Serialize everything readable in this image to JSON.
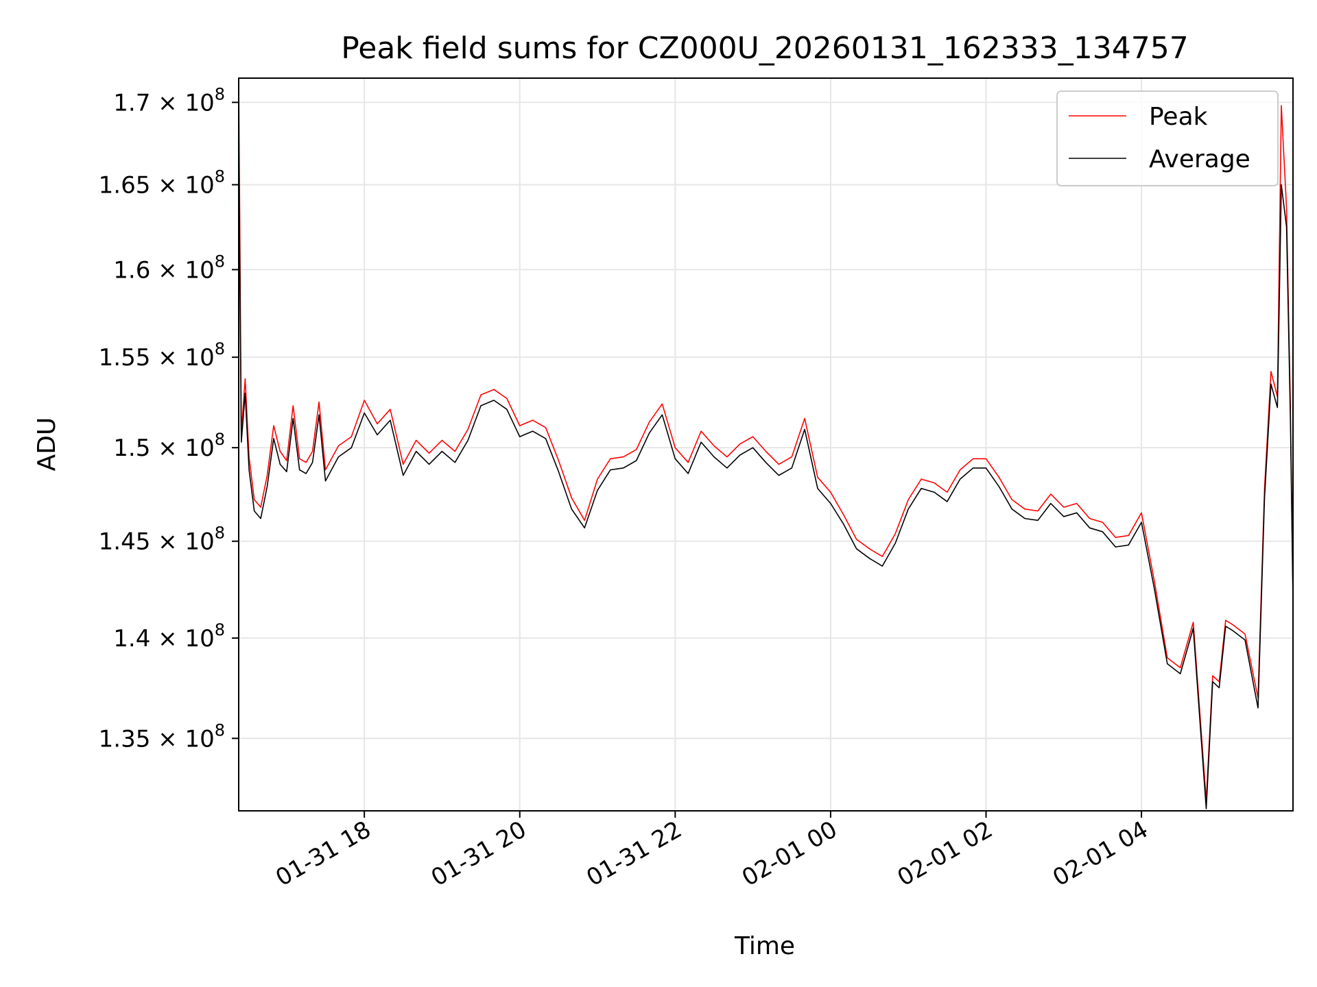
{
  "chart_data": {
    "type": "line",
    "title": "Peak field sums for CZ000U_20260131_162333_134757",
    "xlabel": "Time",
    "ylabel": "ADU",
    "x_range": [
      "2026-01-31 16:23",
      "2026-02-01 05:57"
    ],
    "ylim": [
      131500000,
      171500000
    ],
    "y_scale": "log",
    "grid": true,
    "legend_placement": "top-right",
    "x_ticks": [
      "01-31 18",
      "01-31 20",
      "01-31 22",
      "02-01 00",
      "02-01 02",
      "02-01 04"
    ],
    "y_ticks": [
      {
        "value": 135000000,
        "mantissa": "1.35",
        "base": "10",
        "exp": "8"
      },
      {
        "value": 140000000,
        "mantissa": "1.4",
        "base": "10",
        "exp": "8"
      },
      {
        "value": 145000000,
        "mantissa": "1.45",
        "base": "10",
        "exp": "8"
      },
      {
        "value": 150000000,
        "mantissa": "1.5",
        "base": "10",
        "exp": "8"
      },
      {
        "value": 155000000,
        "mantissa": "1.55",
        "base": "10",
        "exp": "8"
      },
      {
        "value": 160000000,
        "mantissa": "1.6",
        "base": "10",
        "exp": "8"
      },
      {
        "value": 165000000,
        "mantissa": "1.65",
        "base": "10",
        "exp": "8"
      },
      {
        "value": 170000000,
        "mantissa": "1.7",
        "base": "10",
        "exp": "8"
      }
    ],
    "series": [
      {
        "name": "Peak",
        "color": "#ff0000",
        "x": [
          "2026-01-31 16:23",
          "2026-01-31 16:25",
          "2026-01-31 16:28",
          "2026-01-31 16:31",
          "2026-01-31 16:35",
          "2026-01-31 16:40",
          "2026-01-31 16:45",
          "2026-01-31 16:50",
          "2026-01-31 16:55",
          "2026-01-31 17:00",
          "2026-01-31 17:05",
          "2026-01-31 17:10",
          "2026-01-31 17:15",
          "2026-01-31 17:20",
          "2026-01-31 17:25",
          "2026-01-31 17:30",
          "2026-01-31 17:40",
          "2026-01-31 17:50",
          "2026-01-31 18:00",
          "2026-01-31 18:10",
          "2026-01-31 18:20",
          "2026-01-31 18:30",
          "2026-01-31 18:40",
          "2026-01-31 18:50",
          "2026-01-31 19:00",
          "2026-01-31 19:10",
          "2026-01-31 19:20",
          "2026-01-31 19:30",
          "2026-01-31 19:40",
          "2026-01-31 19:50",
          "2026-01-31 20:00",
          "2026-01-31 20:10",
          "2026-01-31 20:20",
          "2026-01-31 20:30",
          "2026-01-31 20:40",
          "2026-01-31 20:50",
          "2026-01-31 21:00",
          "2026-01-31 21:10",
          "2026-01-31 21:20",
          "2026-01-31 21:30",
          "2026-01-31 21:40",
          "2026-01-31 21:50",
          "2026-01-31 22:00",
          "2026-01-31 22:10",
          "2026-01-31 22:20",
          "2026-01-31 22:30",
          "2026-01-31 22:40",
          "2026-01-31 22:50",
          "2026-01-31 23:00",
          "2026-01-31 23:10",
          "2026-01-31 23:20",
          "2026-01-31 23:30",
          "2026-01-31 23:40",
          "2026-01-31 23:50",
          "2026-02-01 00:00",
          "2026-02-01 00:10",
          "2026-02-01 00:20",
          "2026-02-01 00:30",
          "2026-02-01 00:40",
          "2026-02-01 00:50",
          "2026-02-01 01:00",
          "2026-02-01 01:10",
          "2026-02-01 01:20",
          "2026-02-01 01:30",
          "2026-02-01 01:40",
          "2026-02-01 01:50",
          "2026-02-01 02:00",
          "2026-02-01 02:10",
          "2026-02-01 02:20",
          "2026-02-01 02:30",
          "2026-02-01 02:40",
          "2026-02-01 02:50",
          "2026-02-01 03:00",
          "2026-02-01 03:10",
          "2026-02-01 03:20",
          "2026-02-01 03:30",
          "2026-02-01 03:40",
          "2026-02-01 03:50",
          "2026-02-01 04:00",
          "2026-02-01 04:10",
          "2026-02-01 04:20",
          "2026-02-01 04:30",
          "2026-02-01 04:40",
          "2026-02-01 04:50",
          "2026-02-01 04:55",
          "2026-02-01 05:00",
          "2026-02-01 05:05",
          "2026-02-01 05:10",
          "2026-02-01 05:20",
          "2026-02-01 05:30",
          "2026-02-01 05:35",
          "2026-02-01 05:40",
          "2026-02-01 05:45",
          "2026-02-01 05:48",
          "2026-02-01 05:52",
          "2026-02-01 05:55",
          "2026-02-01 05:57"
        ],
        "y": [
          171500000,
          150800000,
          153800000,
          149500000,
          147200000,
          146800000,
          148500000,
          151200000,
          149800000,
          149300000,
          152300000,
          149400000,
          149200000,
          149800000,
          152500000,
          148800000,
          150100000,
          150600000,
          152600000,
          151300000,
          152100000,
          149100000,
          150400000,
          149700000,
          150400000,
          149800000,
          151000000,
          152900000,
          153200000,
          152700000,
          151200000,
          151500000,
          151100000,
          149300000,
          147300000,
          146100000,
          148300000,
          149400000,
          149500000,
          149900000,
          151400000,
          152400000,
          150000000,
          149200000,
          150900000,
          150100000,
          149500000,
          150200000,
          150600000,
          149800000,
          149100000,
          149500000,
          151600000,
          148400000,
          147600000,
          146400000,
          145100000,
          144600000,
          144200000,
          145400000,
          147200000,
          148300000,
          148100000,
          147600000,
          148800000,
          149400000,
          149400000,
          148400000,
          147200000,
          146700000,
          146600000,
          147500000,
          146800000,
          147000000,
          146200000,
          146000000,
          145200000,
          145300000,
          146500000,
          142900000,
          139000000,
          138500000,
          140800000,
          132000000,
          138100000,
          137800000,
          140900000,
          140700000,
          140200000,
          137000000,
          147800000,
          154200000,
          152800000,
          169800000,
          163600000,
          152300000,
          142200000
        ]
      },
      {
        "name": "Average",
        "color": "#000000",
        "x": [
          "2026-01-31 16:23",
          "2026-01-31 16:25",
          "2026-01-31 16:28",
          "2026-01-31 16:31",
          "2026-01-31 16:35",
          "2026-01-31 16:40",
          "2026-01-31 16:45",
          "2026-01-31 16:50",
          "2026-01-31 16:55",
          "2026-01-31 17:00",
          "2026-01-31 17:05",
          "2026-01-31 17:10",
          "2026-01-31 17:15",
          "2026-01-31 17:20",
          "2026-01-31 17:25",
          "2026-01-31 17:30",
          "2026-01-31 17:40",
          "2026-01-31 17:50",
          "2026-01-31 18:00",
          "2026-01-31 18:10",
          "2026-01-31 18:20",
          "2026-01-31 18:30",
          "2026-01-31 18:40",
          "2026-01-31 18:50",
          "2026-01-31 19:00",
          "2026-01-31 19:10",
          "2026-01-31 19:20",
          "2026-01-31 19:30",
          "2026-01-31 19:40",
          "2026-01-31 19:50",
          "2026-01-31 20:00",
          "2026-01-31 20:10",
          "2026-01-31 20:20",
          "2026-01-31 20:30",
          "2026-01-31 20:40",
          "2026-01-31 20:50",
          "2026-01-31 21:00",
          "2026-01-31 21:10",
          "2026-01-31 21:20",
          "2026-01-31 21:30",
          "2026-01-31 21:40",
          "2026-01-31 21:50",
          "2026-01-31 22:00",
          "2026-01-31 22:10",
          "2026-01-31 22:20",
          "2026-01-31 22:30",
          "2026-01-31 22:40",
          "2026-01-31 22:50",
          "2026-01-31 23:00",
          "2026-01-31 23:10",
          "2026-01-31 23:20",
          "2026-01-31 23:30",
          "2026-01-31 23:40",
          "2026-01-31 23:50",
          "2026-02-01 00:00",
          "2026-02-01 00:10",
          "2026-02-01 00:20",
          "2026-02-01 00:30",
          "2026-02-01 00:40",
          "2026-02-01 00:50",
          "2026-02-01 01:00",
          "2026-02-01 01:10",
          "2026-02-01 01:20",
          "2026-02-01 01:30",
          "2026-02-01 01:40",
          "2026-02-01 01:50",
          "2026-02-01 02:00",
          "2026-02-01 02:10",
          "2026-02-01 02:20",
          "2026-02-01 02:30",
          "2026-02-01 02:40",
          "2026-02-01 02:50",
          "2026-02-01 03:00",
          "2026-02-01 03:10",
          "2026-02-01 03:20",
          "2026-02-01 03:30",
          "2026-02-01 03:40",
          "2026-02-01 03:50",
          "2026-02-01 04:00",
          "2026-02-01 04:10",
          "2026-02-01 04:20",
          "2026-02-01 04:30",
          "2026-02-01 04:40",
          "2026-02-01 04:50",
          "2026-02-01 04:55",
          "2026-02-01 05:00",
          "2026-02-01 05:05",
          "2026-02-01 05:10",
          "2026-02-01 05:20",
          "2026-02-01 05:30",
          "2026-02-01 05:35",
          "2026-02-01 05:40",
          "2026-02-01 05:45",
          "2026-02-01 05:48",
          "2026-02-01 05:52",
          "2026-02-01 05:55",
          "2026-02-01 05:57"
        ],
        "y": [
          168000000,
          150300000,
          153000000,
          148800000,
          146600000,
          146200000,
          147900000,
          150500000,
          149100000,
          148700000,
          151600000,
          148800000,
          148600000,
          149200000,
          151800000,
          148200000,
          149500000,
          150000000,
          151900000,
          150700000,
          151500000,
          148500000,
          149800000,
          149100000,
          149800000,
          149200000,
          150400000,
          152300000,
          152600000,
          152100000,
          150600000,
          150900000,
          150500000,
          148700000,
          146700000,
          145700000,
          147700000,
          148800000,
          148900000,
          149300000,
          150800000,
          151800000,
          149400000,
          148600000,
          150300000,
          149500000,
          148900000,
          149600000,
          150000000,
          149200000,
          148500000,
          148900000,
          151000000,
          147800000,
          147000000,
          145900000,
          144600000,
          144100000,
          143700000,
          144900000,
          146700000,
          147800000,
          147600000,
          147100000,
          148300000,
          148900000,
          148900000,
          147900000,
          146700000,
          146200000,
          146100000,
          147000000,
          146300000,
          146500000,
          145700000,
          145500000,
          144700000,
          144800000,
          146000000,
          142500000,
          138700000,
          138200000,
          140500000,
          131600000,
          137800000,
          137500000,
          140600000,
          140400000,
          139900000,
          136500000,
          147300000,
          153500000,
          152200000,
          165000000,
          162500000,
          151600000,
          142000000
        ]
      }
    ]
  }
}
